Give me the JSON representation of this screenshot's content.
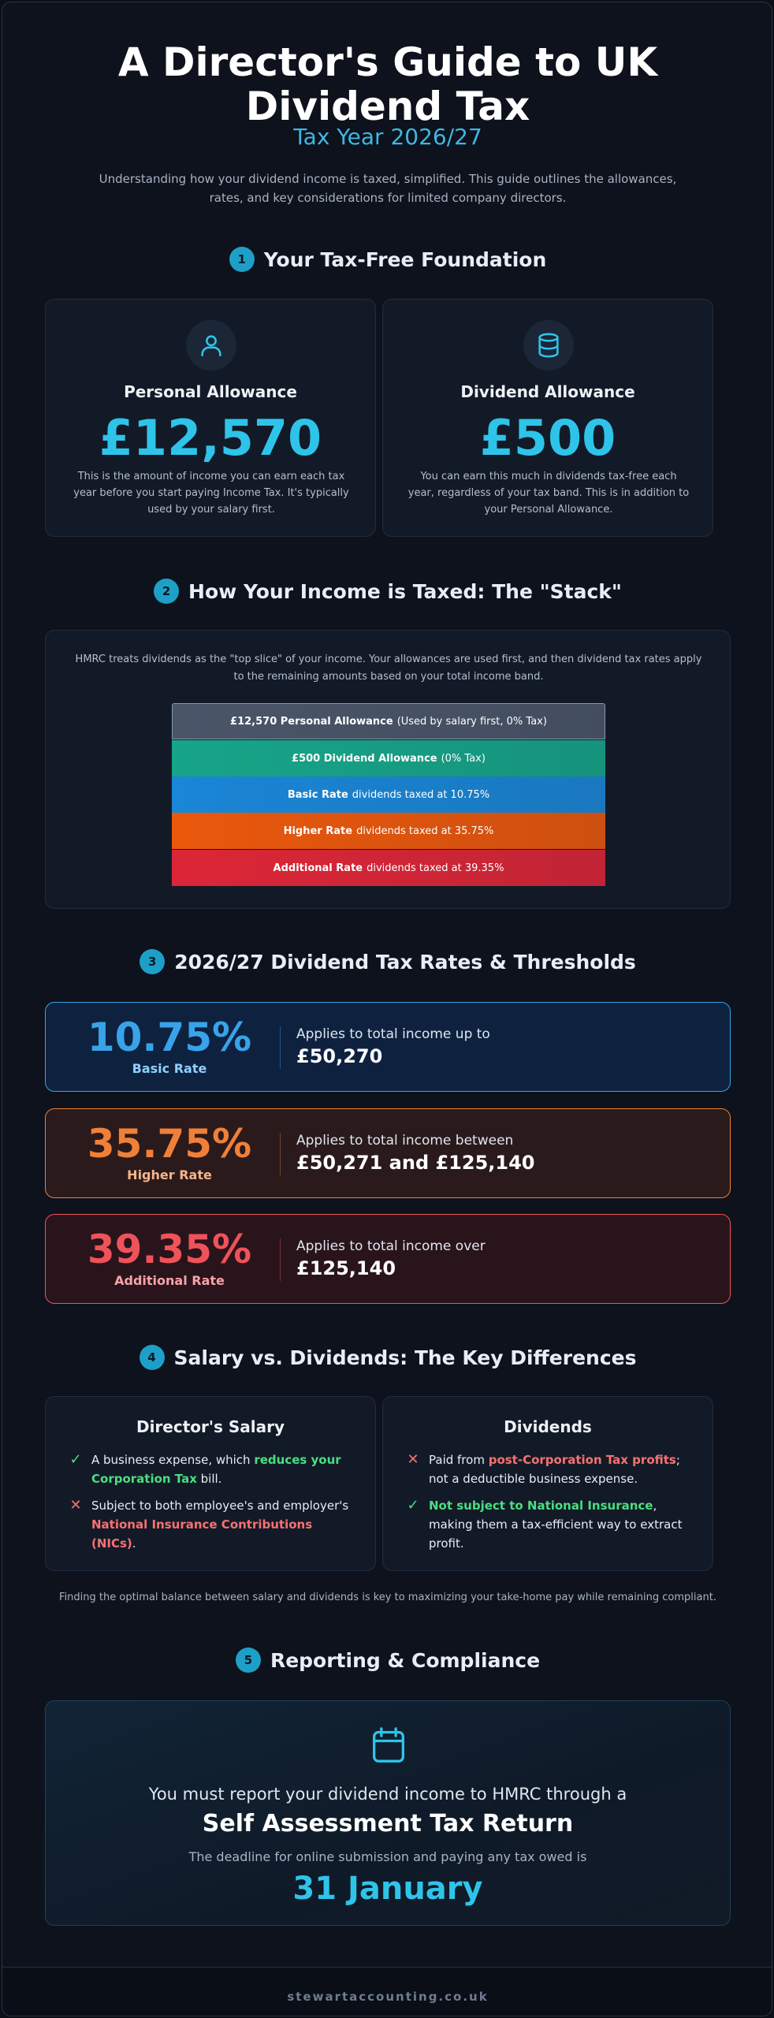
{
  "header": {
    "title_line1": "A Director's Guide to UK",
    "title_line2": "Dividend Tax",
    "subtitle": "Tax Year 2026/27",
    "intro": "Understanding how your dividend income is taxed, simplified. This guide outlines the allowances, rates, and key considerations for limited company directors."
  },
  "sections": [
    {
      "number": "1",
      "title": "Your Tax-Free Foundation"
    },
    {
      "number": "2",
      "title": "How Your Income is Taxed: The \"Stack\""
    },
    {
      "number": "3",
      "title": "2026/27 Dividend Tax Rates & Thresholds"
    },
    {
      "number": "4",
      "title": "Salary vs. Dividends: The Key Differences"
    },
    {
      "number": "5",
      "title": "Reporting & Compliance"
    }
  ],
  "allowances": [
    {
      "icon": "user-icon",
      "name": "Personal Allowance",
      "amount": "£12,570",
      "description": "This is the amount of income you can earn each tax year before you start paying Income Tax. It's typically used by your salary first."
    },
    {
      "icon": "database-icon",
      "name": "Dividend Allowance",
      "amount": "£500",
      "description": "You can earn this much in dividends tax-free each year, regardless of your tax band. This is in addition to your Personal Allowance."
    }
  ],
  "stack": {
    "intro": "HMRC treats dividends as the \"top slice\" of your income. Your allowances are used first, and then dividend tax rates apply to the remaining amounts based on your total income band.",
    "layers": [
      {
        "bold": "£12,570 Personal Allowance",
        "text": "(Used by salary first, 0% Tax)",
        "color": "#4a5568"
      },
      {
        "bold": "£500 Dividend Allowance",
        "text": "(0% Tax)",
        "color": "#17a589"
      },
      {
        "bold": "Basic Rate",
        "text": "dividends taxed at 10.75%",
        "color": "#1a86d6"
      },
      {
        "bold": "Higher Rate",
        "text": "dividends taxed at 35.75%",
        "color": "#ea580c"
      },
      {
        "bold": "Additional Rate",
        "text": "dividends taxed at 39.35%",
        "color": "#dc2637"
      }
    ]
  },
  "rates": [
    {
      "percent": "10.75%",
      "label": "Basic Rate",
      "applies": "Applies to total income up to",
      "band": "£50,270",
      "accent": "#38a3e8"
    },
    {
      "percent": "35.75%",
      "label": "Higher Rate",
      "applies": "Applies to total income between",
      "band": "£50,271 and £125,140",
      "accent": "#f08038"
    },
    {
      "percent": "39.35%",
      "label": "Additional Rate",
      "applies": "Applies to total income over",
      "band": "£125,140",
      "accent": "#f0525a"
    }
  ],
  "comparison": {
    "salary": {
      "title": "Director's Salary",
      "item1_pre": "A business expense, which ",
      "item1_hl": "reduces your Corporation Tax",
      "item1_post": " bill.",
      "item2_pre": "Subject to both employee's and employer's ",
      "item2_hl": "National Insurance Contributions (NICs)",
      "item2_post": "."
    },
    "dividends": {
      "title": "Dividends",
      "item1_pre": "Paid from ",
      "item1_hl": "post-Corporation Tax profits",
      "item1_post": "; not a deductible business expense.",
      "item2_pre": "",
      "item2_hl": "Not subject to National Insurance",
      "item2_post": ", making them a tax-efficient way to extract profit."
    },
    "balance_note": "Finding the optimal balance between salary and dividends is key to maximizing your take-home pay while remaining compliant."
  },
  "reporting": {
    "icon": "calendar-icon",
    "line1": "You must report your dividend income to HMRC through a",
    "line2": "Self Assessment Tax Return",
    "line3": "The deadline for online submission and paying any tax owed is",
    "deadline": "31 January"
  },
  "footer": {
    "text": "stewartaccounting.co.uk"
  }
}
